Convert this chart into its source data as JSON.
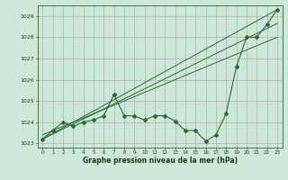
{
  "hours": [
    0,
    1,
    2,
    3,
    4,
    5,
    6,
    7,
    8,
    9,
    10,
    11,
    12,
    13,
    14,
    15,
    16,
    17,
    18,
    19,
    20,
    21,
    22,
    23
  ],
  "pressure": [
    1023.2,
    1023.6,
    1024.0,
    1023.8,
    1024.0,
    1024.1,
    1024.3,
    1025.3,
    1024.3,
    1024.3,
    1024.1,
    1024.3,
    1024.3,
    1024.05,
    1023.6,
    1023.6,
    1023.1,
    1023.4,
    1024.4,
    1026.6,
    1028.0,
    1028.0,
    1028.6,
    1029.3
  ],
  "line_color": "#2d6a2d",
  "marker": "D",
  "marker_size": 2,
  "bg_color": "#cce8d8",
  "grid_color": "#b8aab8",
  "xlabel": "Graphe pression niveau de la mer (hPa)",
  "ylim": [
    1022.8,
    1029.5
  ],
  "xlim": [
    -0.5,
    23.5
  ],
  "yticks": [
    1023,
    1024,
    1025,
    1026,
    1027,
    1028,
    1029
  ],
  "xticks": [
    0,
    1,
    2,
    3,
    4,
    5,
    6,
    7,
    8,
    9,
    10,
    11,
    12,
    13,
    14,
    15,
    16,
    17,
    18,
    19,
    20,
    21,
    22,
    23
  ],
  "trend_lines": [
    [
      0,
      1023.2,
      23,
      1029.3
    ],
    [
      0,
      1023.2,
      23,
      1028.65
    ],
    [
      0,
      1023.4,
      23,
      1028.0
    ]
  ]
}
